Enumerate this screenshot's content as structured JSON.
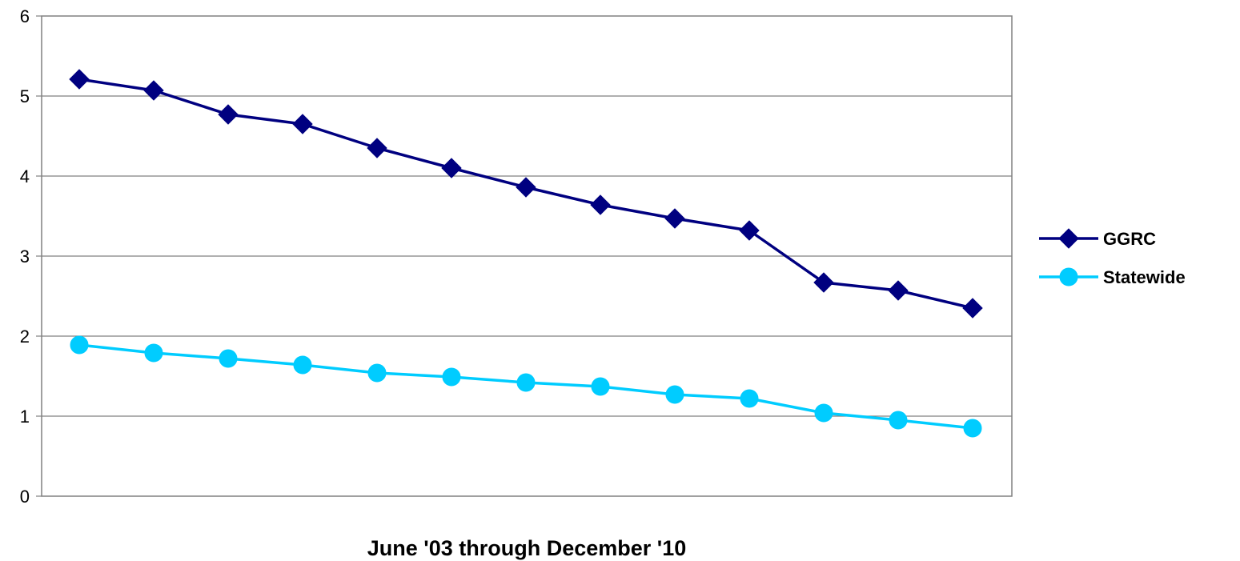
{
  "chart_data": {
    "type": "line",
    "title": "",
    "xlabel": "June '03 through December '10",
    "ylabel": "",
    "ylim": [
      0,
      6
    ],
    "yticks": [
      0,
      1,
      2,
      3,
      4,
      5,
      6
    ],
    "grid": true,
    "legend_position": "right",
    "x": [
      1,
      2,
      3,
      4,
      5,
      6,
      7,
      8,
      9,
      10,
      11,
      12,
      13
    ],
    "series": [
      {
        "name": "GGRC",
        "color": "#000080",
        "marker": "diamond",
        "values": [
          5.21,
          5.07,
          4.77,
          4.65,
          4.35,
          4.1,
          3.86,
          3.64,
          3.47,
          3.32,
          2.67,
          2.57,
          2.35
        ]
      },
      {
        "name": "Statewide",
        "color": "#00CCFF",
        "marker": "circle",
        "values": [
          1.89,
          1.79,
          1.72,
          1.64,
          1.54,
          1.49,
          1.42,
          1.37,
          1.27,
          1.22,
          1.04,
          0.95,
          0.85
        ]
      }
    ]
  }
}
